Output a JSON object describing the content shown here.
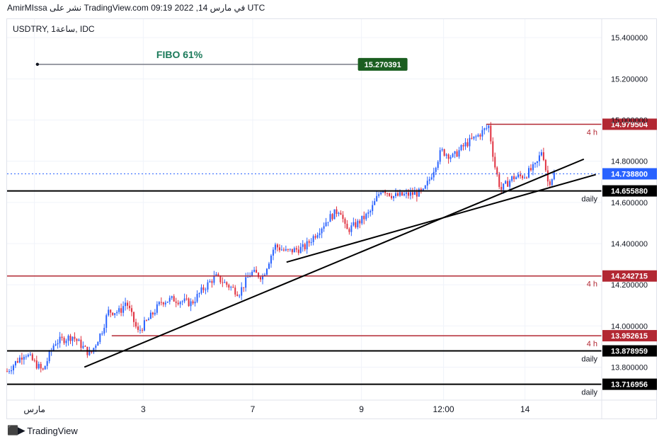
{
  "header": {
    "text": "AmirMIssa نشر على TradingView.com في مارس 14, 2022 09:19 UTC"
  },
  "footer": {
    "brand": "TradingView",
    "logo_icon": "tradingview-logo-icon"
  },
  "chart_data": {
    "type": "candlestick",
    "symbol_label": "USDTRY, 1ساعة, IDC",
    "x_ticks": [
      "مارس",
      "3",
      "7",
      "9",
      "12:00",
      "14"
    ],
    "y_ticks": [
      "15.400000",
      "15.200000",
      "15.000000",
      "14.800000",
      "14.600000",
      "14.400000",
      "14.200000",
      "14.000000",
      "13.800000"
    ],
    "ylim": [
      13.64,
      15.49
    ],
    "grid": true,
    "current_price": {
      "value": 14.7388,
      "label": "14.738800",
      "color": "#2962ff"
    },
    "horizontal_levels": [
      {
        "value": 14.979504,
        "label": "14.979504",
        "tag": "4 h",
        "color": "#b22833"
      },
      {
        "value": 14.65588,
        "label": "14.655880",
        "tag": "daily",
        "color": "#000000"
      },
      {
        "value": 14.242715,
        "label": "14.242715",
        "tag": "4 h",
        "color": "#b22833"
      },
      {
        "value": 13.952615,
        "label": "13.952615",
        "tag": "4 h",
        "color": "#b22833"
      },
      {
        "value": 13.878959,
        "label": "13.878959",
        "tag": "daily",
        "color": "#000000"
      },
      {
        "value": 13.716956,
        "label": "13.716956",
        "tag": "daily",
        "color": "#000000"
      }
    ],
    "fibo": {
      "title": "FIBO 61%",
      "value": 15.270391,
      "label": "15.270391",
      "color": "#1b5e20"
    },
    "trendlines": [
      {
        "from": [
          0.13,
          13.8
        ],
        "to": [
          0.97,
          14.81
        ]
      },
      {
        "from": [
          0.47,
          14.31
        ],
        "to": [
          0.99,
          14.735
        ]
      }
    ],
    "price_path": [
      [
        0.0,
        13.78
      ],
      [
        0.03,
        13.87
      ],
      [
        0.06,
        13.78
      ],
      [
        0.08,
        13.92
      ],
      [
        0.11,
        13.95
      ],
      [
        0.14,
        13.86
      ],
      [
        0.16,
        13.98
      ],
      [
        0.17,
        14.07
      ],
      [
        0.19,
        14.07
      ],
      [
        0.2,
        14.12
      ],
      [
        0.22,
        13.97
      ],
      [
        0.24,
        14.04
      ],
      [
        0.26,
        14.12
      ],
      [
        0.28,
        14.13
      ],
      [
        0.31,
        14.11
      ],
      [
        0.33,
        14.18
      ],
      [
        0.35,
        14.24
      ],
      [
        0.37,
        14.2
      ],
      [
        0.39,
        14.16
      ],
      [
        0.41,
        14.26
      ],
      [
        0.43,
        14.24
      ],
      [
        0.45,
        14.39
      ],
      [
        0.47,
        14.36
      ],
      [
        0.5,
        14.38
      ],
      [
        0.52,
        14.45
      ],
      [
        0.54,
        14.52
      ],
      [
        0.56,
        14.57
      ],
      [
        0.57,
        14.46
      ],
      [
        0.59,
        14.5
      ],
      [
        0.61,
        14.55
      ],
      [
        0.63,
        14.67
      ],
      [
        0.65,
        14.63
      ],
      [
        0.68,
        14.64
      ],
      [
        0.7,
        14.65
      ],
      [
        0.71,
        14.71
      ],
      [
        0.73,
        14.85
      ],
      [
        0.75,
        14.82
      ],
      [
        0.77,
        14.88
      ],
      [
        0.79,
        14.92
      ],
      [
        0.81,
        14.97
      ],
      [
        0.82,
        14.78
      ],
      [
        0.83,
        14.66
      ],
      [
        0.85,
        14.72
      ],
      [
        0.87,
        14.73
      ],
      [
        0.89,
        14.78
      ],
      [
        0.9,
        14.86
      ],
      [
        0.91,
        14.69
      ],
      [
        0.92,
        14.74
      ]
    ]
  }
}
